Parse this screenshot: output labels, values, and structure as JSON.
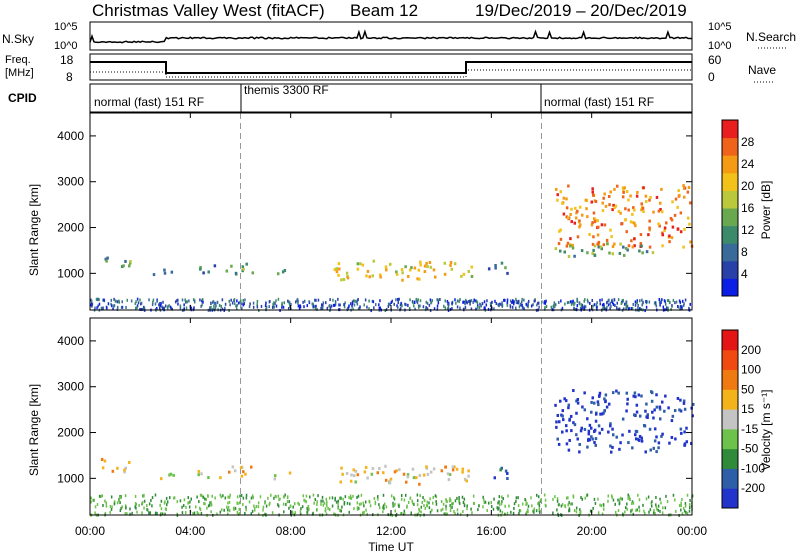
{
  "header": {
    "station": "Christmas Valley West (fitACF)",
    "beam": "Beam 12",
    "dates": "19/Dec/2019 – 20/Dec/2019"
  },
  "panels": {
    "nsky_label": "N.Sky",
    "nsky_ticks": [
      "10^5",
      "10^0"
    ],
    "nsearch_label": "N.Search",
    "nsearch_ticks": [
      "10^5",
      "10^0"
    ],
    "freq_label_1": "Freq.",
    "freq_label_2": "[MHz]",
    "freq_ticks": [
      "18",
      "8"
    ],
    "nave_label": "Nave",
    "nave_ticks": [
      "60",
      "0"
    ],
    "cpid_label": "CPID",
    "cpid_segments": [
      {
        "label": "normal (fast) 151 RF",
        "start_hour": 0,
        "end_hour": 6
      },
      {
        "label": "themis 3300 RF",
        "start_hour": 6,
        "end_hour": 18
      },
      {
        "label": "normal (fast) 151 RF",
        "start_hour": 18,
        "end_hour": 24
      }
    ]
  },
  "chart_data": [
    {
      "type": "heatmap",
      "quantity": "power",
      "ylabel": "Slant Range [km]",
      "xlim": [
        0,
        24
      ],
      "ylim": [
        200,
        4500
      ],
      "yticks": [
        1000,
        2000,
        3000,
        4000
      ],
      "colorbar_label": "Power [dB]",
      "colorbar_ticks": [
        4,
        8,
        12,
        16,
        20,
        24,
        28
      ],
      "colorbar_colors": [
        "#0a1ee6",
        "#2840a8",
        "#3a6a9a",
        "#3d8a6a",
        "#6aa84f",
        "#b9c93b",
        "#f2c21b",
        "#f59a13",
        "#f0631a",
        "#e91e1e"
      ],
      "regions": [
        {
          "t0": 0.4,
          "t1": 1.6,
          "r0": 1150,
          "r1": 1450,
          "level": 0.35
        },
        {
          "t0": 2.3,
          "t1": 3.4,
          "r0": 1000,
          "r1": 1150,
          "level": 0.35
        },
        {
          "t0": 4.2,
          "t1": 5.2,
          "r0": 1000,
          "r1": 1200,
          "level": 0.3
        },
        {
          "t0": 5.4,
          "t1": 6.6,
          "r0": 1000,
          "r1": 1300,
          "level": 0.4
        },
        {
          "t0": 7.3,
          "t1": 8.0,
          "r0": 1000,
          "r1": 1150,
          "level": 0.3
        },
        {
          "t0": 9.6,
          "t1": 15.2,
          "r0": 880,
          "r1": 1300,
          "level": 0.62
        },
        {
          "t0": 15.8,
          "t1": 16.6,
          "r0": 1000,
          "r1": 1300,
          "level": 0.3
        },
        {
          "t0": 18.5,
          "t1": 24.0,
          "r0": 1600,
          "r1": 2950,
          "level": 0.78
        },
        {
          "t0": 18.4,
          "t1": 22.5,
          "r0": 1400,
          "r1": 1700,
          "level": 0.4
        }
      ]
    },
    {
      "type": "heatmap",
      "quantity": "velocity",
      "xlabel": "Time UT",
      "ylabel": "Slant Range [km]",
      "xlim": [
        0,
        24
      ],
      "ylim": [
        200,
        4500
      ],
      "xticks": [
        "00:00",
        "04:00",
        "08:00",
        "12:00",
        "16:00",
        "20:00",
        "00:00"
      ],
      "yticks": [
        1000,
        2000,
        3000,
        4000
      ],
      "colorbar_label": "Velocity [m s⁻¹]",
      "colorbar_ticks": [
        200,
        100,
        50,
        15,
        -15,
        -50,
        -100,
        -200
      ],
      "colorbar_colors": [
        "#2233cc",
        "#2e5ea8",
        "#2f8a3a",
        "#6cc24a",
        "#c4c4c4",
        "#f2b31b",
        "#f07a12",
        "#f04a10",
        "#e41515"
      ],
      "regions": [
        {
          "t0": 0.4,
          "t1": 1.6,
          "r0": 1150,
          "r1": 1450,
          "level": 0.55
        },
        {
          "t0": 2.3,
          "t1": 3.4,
          "r0": 1000,
          "r1": 1150,
          "level": 0.5
        },
        {
          "t0": 4.2,
          "t1": 5.2,
          "r0": 1000,
          "r1": 1200,
          "level": 0.5
        },
        {
          "t0": 5.4,
          "t1": 6.6,
          "r0": 1000,
          "r1": 1300,
          "level": 0.6
        },
        {
          "t0": 7.3,
          "t1": 8.0,
          "r0": 1000,
          "r1": 1150,
          "level": 0.55
        },
        {
          "t0": 9.6,
          "t1": 15.2,
          "r0": 880,
          "r1": 1300,
          "level": 0.55
        },
        {
          "t0": 15.8,
          "t1": 16.6,
          "r0": 1000,
          "r1": 1300,
          "level": 0.15
        },
        {
          "t0": 18.5,
          "t1": 24.0,
          "r0": 1600,
          "r1": 2950,
          "level": 0.05
        }
      ]
    }
  ]
}
